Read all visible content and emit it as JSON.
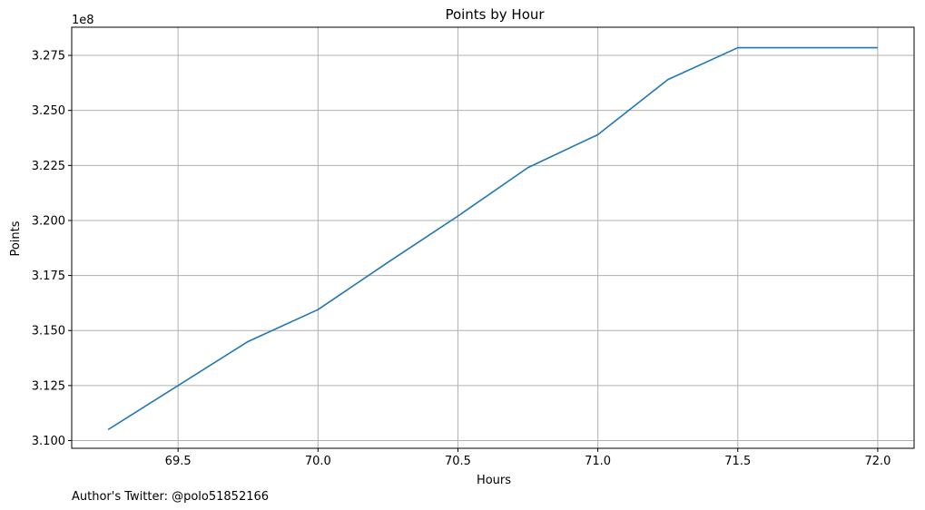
{
  "chart_data": {
    "type": "line",
    "title": "Points by Hour",
    "xlabel": "Hours",
    "ylabel": "Points",
    "offset_text": "1e8",
    "grid": true,
    "xlim": [
      69.12,
      72.13
    ],
    "ylim": [
      3.0965,
      3.2878
    ],
    "x_ticks": [
      69.5,
      70.0,
      70.5,
      71.0,
      71.5,
      72.0
    ],
    "x_tick_labels": [
      "69.5",
      "70.0",
      "70.5",
      "71.0",
      "71.5",
      "72.0"
    ],
    "y_ticks": [
      3.1,
      3.125,
      3.15,
      3.175,
      3.2,
      3.225,
      3.25,
      3.275
    ],
    "y_tick_labels": [
      "3.100",
      "3.125",
      "3.150",
      "3.175",
      "3.200",
      "3.225",
      "3.250",
      "3.275"
    ],
    "series": [
      {
        "color": "#1f77b4",
        "x": [
          69.25,
          69.75,
          70.0,
          70.25,
          70.5,
          70.75,
          71.0,
          71.25,
          71.5,
          71.75,
          72.0
        ],
        "y": [
          3.105,
          3.145,
          3.1595,
          3.181,
          3.202,
          3.224,
          3.239,
          3.264,
          3.2785,
          3.2785,
          3.2785
        ]
      }
    ]
  },
  "footer": {
    "text": "Author's Twitter: @polo51852166"
  }
}
